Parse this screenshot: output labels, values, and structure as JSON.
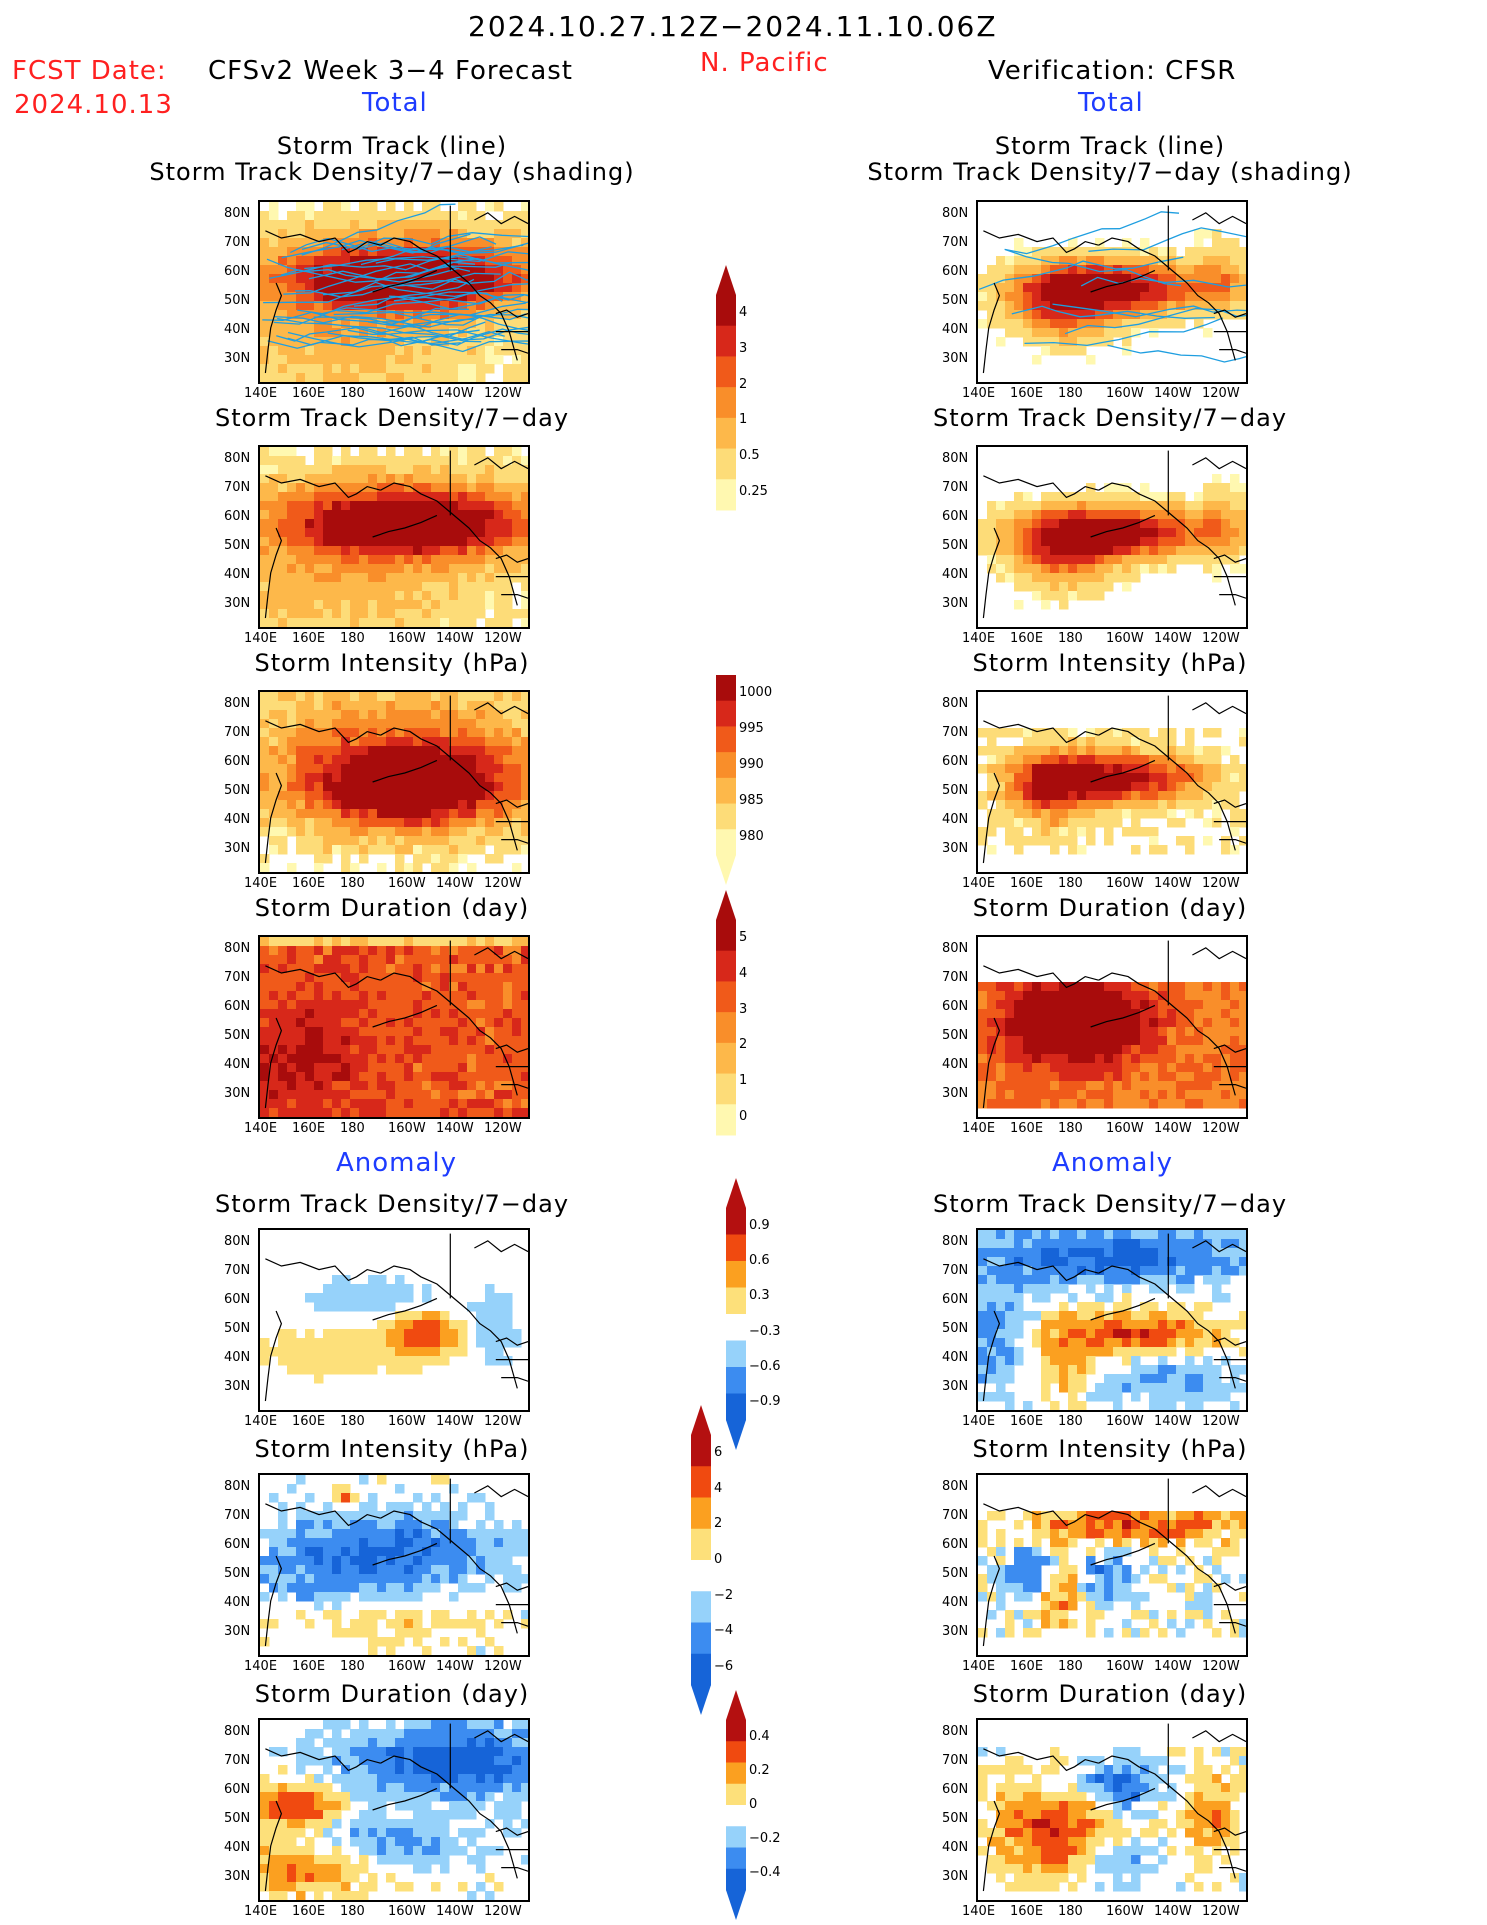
{
  "header": {
    "period": "2024.10.27.12Z−2024.11.10.06Z",
    "fcst_label": "FCST Date:",
    "fcst_date": "2024.10.13",
    "forecast_title": "CFSv2 Week 3−4 Forecast",
    "region": "N. Pacific",
    "verification_title": "Verification: CFSR",
    "section_total": "Total",
    "section_anomaly": "Anomaly"
  },
  "titles": {
    "track_line": "Storm Track (line)",
    "track_density_shading": "Storm Track Density/7−day (shading)",
    "track_density": "Storm Track Density/7−day",
    "intensity": "Storm Intensity (hPa)",
    "duration": "Storm Duration (day)"
  },
  "axes": {
    "lat_labels": [
      "80N",
      "70N",
      "60N",
      "50N",
      "40N",
      "30N"
    ],
    "lon_labels": [
      "140E",
      "160E",
      "180",
      "160W",
      "140W",
      "120W"
    ]
  },
  "colorbars": {
    "density_total": [
      "4",
      "3",
      "2",
      "1",
      "0.5",
      "0.25"
    ],
    "intensity_total": [
      "1000",
      "995",
      "990",
      "985",
      "980"
    ],
    "duration_total": [
      "5",
      "4",
      "3",
      "2",
      "1",
      "0"
    ],
    "density_anom": [
      "0.9",
      "0.6",
      "0.3",
      "−0.3",
      "−0.6",
      "−0.9"
    ],
    "intensity_anom": [
      "6",
      "4",
      "2",
      "0",
      "−2",
      "−4",
      "−6"
    ],
    "duration_anom": [
      "0.4",
      "0.2",
      "0",
      "−0.2",
      "−0.4"
    ]
  },
  "colors": {
    "total_scale": [
      "#fff8b0",
      "#fddc78",
      "#fdb84a",
      "#f98e2a",
      "#f05a1a",
      "#d7281a",
      "#a80c0c"
    ],
    "anom_scale": [
      "#1664d8",
      "#3c8cf0",
      "#96d2fa",
      "#ffffff",
      "#fde07a",
      "#fba020",
      "#f04a10",
      "#b41010"
    ]
  },
  "panels": [
    {
      "id": "fc-track",
      "col": "forecast",
      "title_key": "track_line",
      "title2_key": "track_density_shading",
      "cbar": "density_total",
      "pattern": "fc_density",
      "tracks": true
    },
    {
      "id": "vf-track",
      "col": "verification",
      "title_key": "track_line",
      "title2_key": "track_density_shading",
      "pattern": "vf_density",
      "tracks": true
    },
    {
      "id": "fc-density",
      "col": "forecast",
      "title_key": "track_density",
      "pattern": "fc_density"
    },
    {
      "id": "vf-density",
      "col": "verification",
      "title_key": "track_density",
      "pattern": "vf_density"
    },
    {
      "id": "fc-intensity",
      "col": "forecast",
      "title_key": "intensity",
      "cbar": "intensity_total",
      "pattern": "fc_intensity"
    },
    {
      "id": "vf-intensity",
      "col": "verification",
      "title_key": "intensity",
      "pattern": "vf_intensity"
    },
    {
      "id": "fc-duration",
      "col": "forecast",
      "title_key": "duration",
      "cbar": "duration_total",
      "pattern": "fc_duration"
    },
    {
      "id": "vf-duration",
      "col": "verification",
      "title_key": "duration",
      "pattern": "vf_duration"
    },
    {
      "id": "fc-density-anom",
      "col": "forecast",
      "title_key": "track_density",
      "cbar": "density_anom",
      "pattern": "fc_density_anom"
    },
    {
      "id": "vf-density-anom",
      "col": "verification",
      "title_key": "track_density",
      "pattern": "vf_density_anom"
    },
    {
      "id": "fc-intensity-anom",
      "col": "forecast",
      "title_key": "intensity",
      "cbar": "intensity_anom",
      "pattern": "fc_intensity_anom"
    },
    {
      "id": "vf-intensity-anom",
      "col": "verification",
      "title_key": "intensity",
      "pattern": "vf_intensity_anom"
    },
    {
      "id": "fc-duration-anom",
      "col": "forecast",
      "title_key": "duration",
      "cbar": "duration_anom",
      "pattern": "fc_duration_anom"
    },
    {
      "id": "vf-duration-anom",
      "col": "verification",
      "title_key": "duration",
      "pattern": "vf_duration_anom"
    }
  ]
}
